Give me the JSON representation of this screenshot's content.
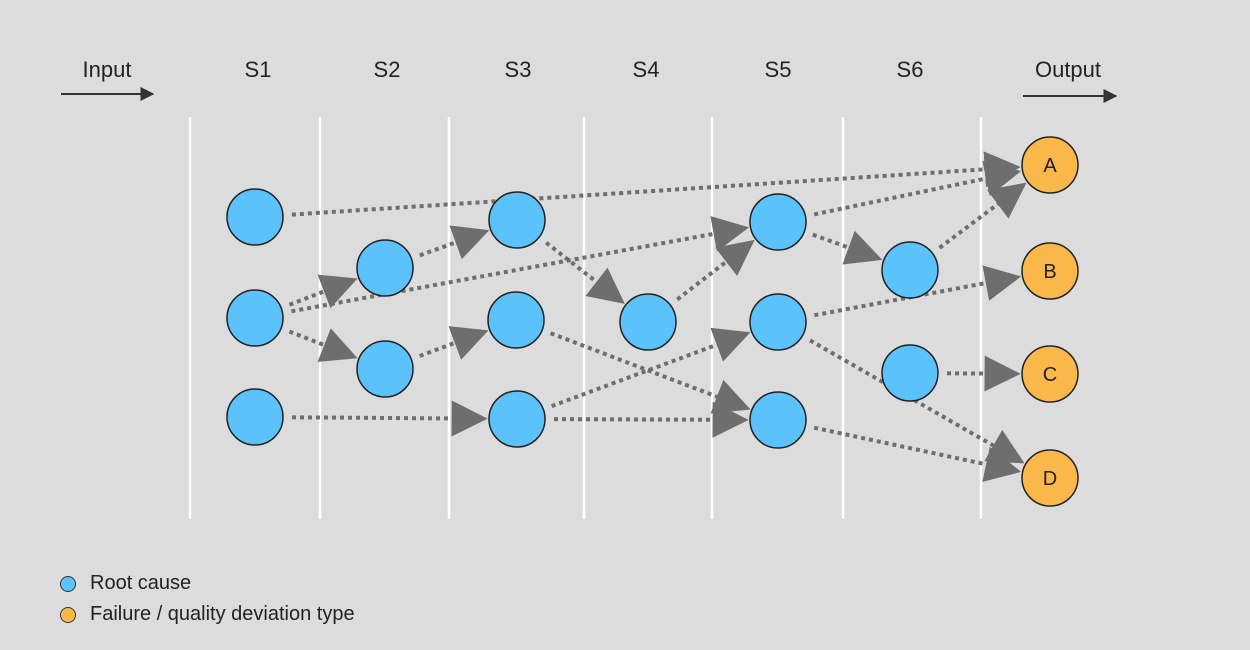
{
  "headers": {
    "input": "Input",
    "output": "Output",
    "stages": [
      "S1",
      "S2",
      "S3",
      "S4",
      "S5",
      "S6"
    ]
  },
  "colors": {
    "root_cause": "#5bc2fc",
    "failure": "#fab84a",
    "edge": "#6e6e6e",
    "divider": "#ffffff"
  },
  "nodes": {
    "root_causes": [
      {
        "id": "s1a"
      },
      {
        "id": "s1b"
      },
      {
        "id": "s1c"
      },
      {
        "id": "s2a"
      },
      {
        "id": "s2b"
      },
      {
        "id": "s3a"
      },
      {
        "id": "s3b"
      },
      {
        "id": "s3c"
      },
      {
        "id": "s4a"
      },
      {
        "id": "s5a"
      },
      {
        "id": "s5b"
      },
      {
        "id": "s5c"
      },
      {
        "id": "s6a"
      },
      {
        "id": "s6b"
      }
    ],
    "outputs": [
      {
        "id": "A",
        "label": "A"
      },
      {
        "id": "B",
        "label": "B"
      },
      {
        "id": "C",
        "label": "C"
      },
      {
        "id": "D",
        "label": "D"
      }
    ]
  },
  "edges": [
    [
      "s1a",
      "A"
    ],
    [
      "s1b",
      "s2a"
    ],
    [
      "s1b",
      "s2b"
    ],
    [
      "s1b",
      "s5a"
    ],
    [
      "s1c",
      "s3c"
    ],
    [
      "s2a",
      "s3a"
    ],
    [
      "s2b",
      "s3b"
    ],
    [
      "s3a",
      "s4a"
    ],
    [
      "s3b",
      "s5c"
    ],
    [
      "s3c",
      "s5b"
    ],
    [
      "s3c",
      "s5c"
    ],
    [
      "s4a",
      "s5a"
    ],
    [
      "s5a",
      "A"
    ],
    [
      "s5a",
      "s6a"
    ],
    [
      "s5b",
      "B"
    ],
    [
      "s5b",
      "D"
    ],
    [
      "s5c",
      "D"
    ],
    [
      "s6a",
      "A"
    ],
    [
      "s6b",
      "C"
    ]
  ],
  "legend": {
    "root_cause": "Root cause",
    "failure": "Failure / quality deviation type"
  }
}
